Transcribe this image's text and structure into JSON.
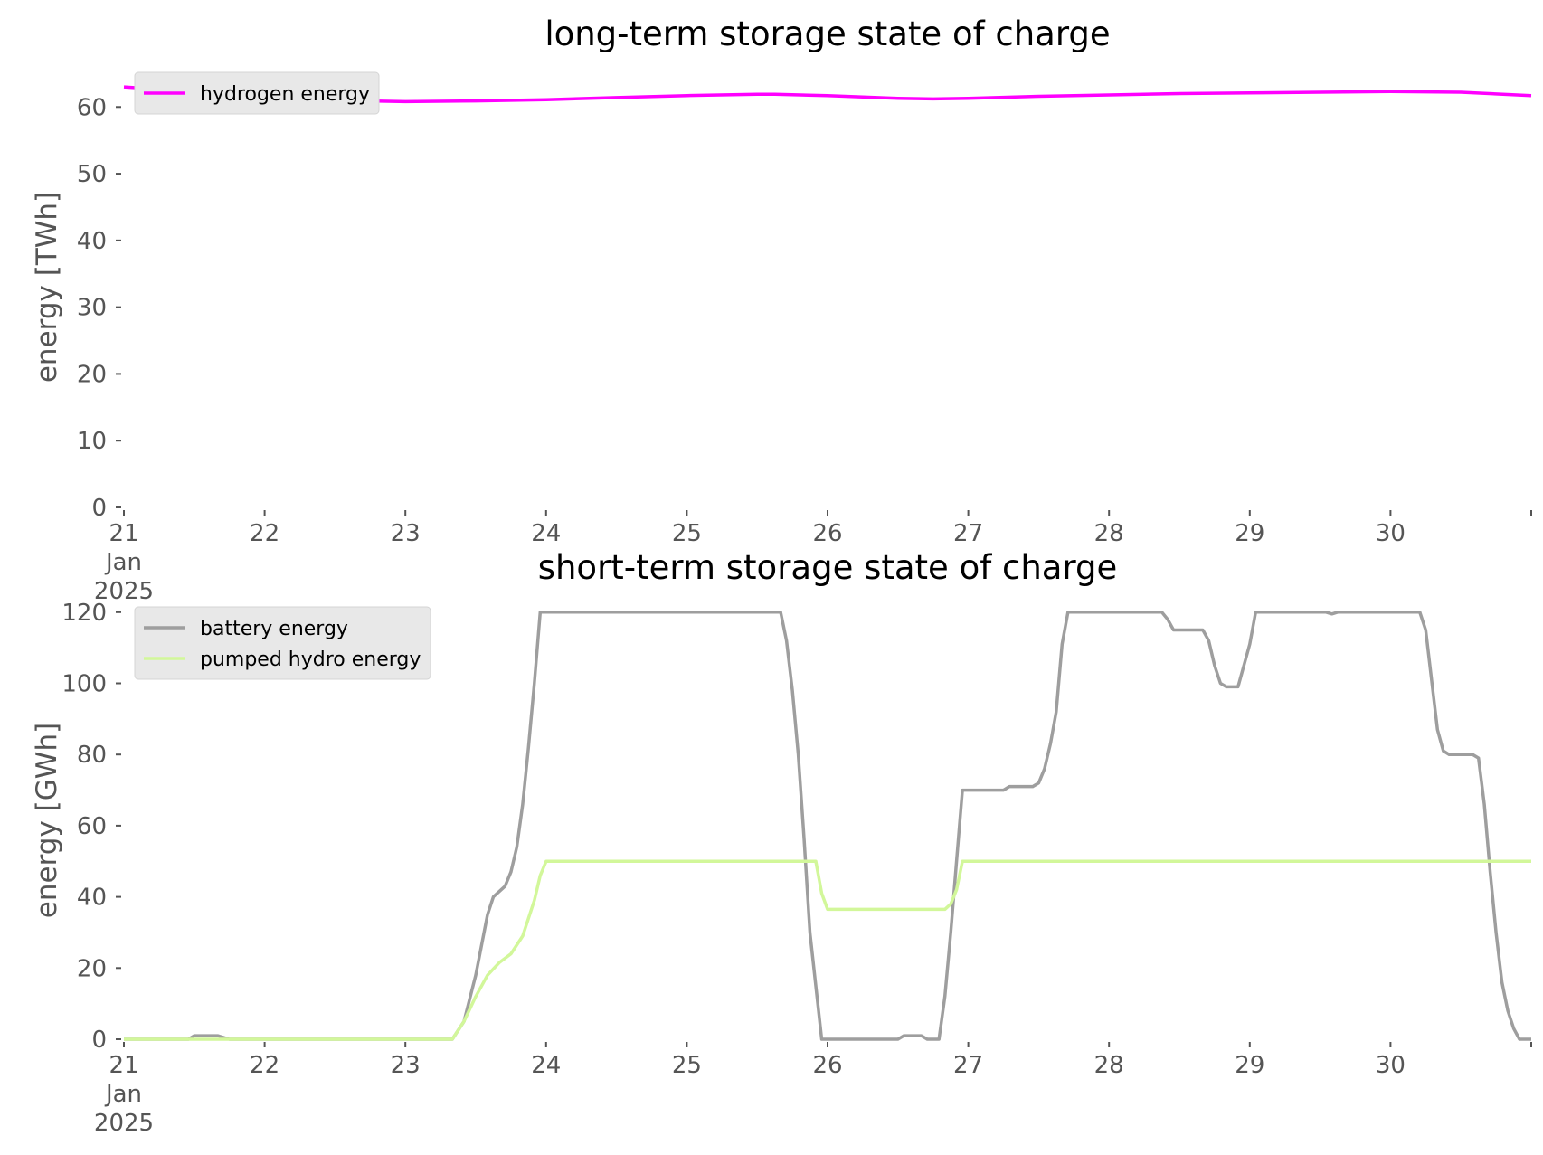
{
  "chart_data": [
    {
      "type": "line",
      "title": "long-term storage state of charge",
      "xlabel": "",
      "ylabel": "energy [TWh]",
      "ylim": [
        0,
        66
      ],
      "xlim": [
        "2025-01-21 00:00",
        "2025-01-31 00:00"
      ],
      "grid": false,
      "legend_position": "top-left",
      "yticks": [
        0,
        10,
        20,
        30,
        40,
        50,
        60
      ],
      "xtick_labels": [
        [
          "21",
          "Jan",
          "2025"
        ],
        [
          "22"
        ],
        [
          "23"
        ],
        [
          "24"
        ],
        [
          "25"
        ],
        [
          "26"
        ],
        [
          "27"
        ],
        [
          "28"
        ],
        [
          "29"
        ],
        [
          "30"
        ],
        [
          ""
        ]
      ],
      "series": [
        {
          "name": "hydrogen energy",
          "color": "#ff00ff",
          "points": [
            [
              "2025-01-21 00:00",
              63.0
            ],
            [
              "2025-01-21 12:00",
              62.3
            ],
            [
              "2025-01-22 00:00",
              61.7
            ],
            [
              "2025-01-22 12:00",
              61.0
            ],
            [
              "2025-01-23 00:00",
              60.8
            ],
            [
              "2025-01-23 12:00",
              60.9
            ],
            [
              "2025-01-24 00:00",
              61.1
            ],
            [
              "2025-01-24 12:00",
              61.4
            ],
            [
              "2025-01-25 00:00",
              61.7
            ],
            [
              "2025-01-25 12:00",
              61.9
            ],
            [
              "2025-01-25 15:00",
              61.9
            ],
            [
              "2025-01-26 00:00",
              61.7
            ],
            [
              "2025-01-26 12:00",
              61.3
            ],
            [
              "2025-01-26 18:00",
              61.2
            ],
            [
              "2025-01-27 00:00",
              61.3
            ],
            [
              "2025-01-27 12:00",
              61.6
            ],
            [
              "2025-01-28 00:00",
              61.8
            ],
            [
              "2025-01-28 12:00",
              62.0
            ],
            [
              "2025-01-29 00:00",
              62.1
            ],
            [
              "2025-01-29 12:00",
              62.2
            ],
            [
              "2025-01-30 00:00",
              62.3
            ],
            [
              "2025-01-30 12:00",
              62.2
            ],
            [
              "2025-01-31 00:00",
              61.7
            ]
          ]
        }
      ]
    },
    {
      "type": "line",
      "title": "short-term storage state of charge",
      "xlabel": "",
      "ylabel": "energy [GWh]",
      "ylim": [
        0,
        123
      ],
      "xlim": [
        "2025-01-21 00:00",
        "2025-01-31 00:00"
      ],
      "grid": false,
      "legend_position": "top-left",
      "yticks": [
        0,
        20,
        40,
        60,
        80,
        100,
        120
      ],
      "xtick_labels": [
        [
          "21",
          "Jan",
          "2025"
        ],
        [
          "22"
        ],
        [
          "23"
        ],
        [
          "24"
        ],
        [
          "25"
        ],
        [
          "26"
        ],
        [
          "27"
        ],
        [
          "28"
        ],
        [
          "29"
        ],
        [
          "30"
        ],
        [
          ""
        ]
      ],
      "series": [
        {
          "name": "battery energy",
          "color": "#9e9e9e",
          "points": [
            [
              "2025-01-21 00:00",
              0
            ],
            [
              "2025-01-21 11:00",
              0
            ],
            [
              "2025-01-21 12:00",
              1
            ],
            [
              "2025-01-21 16:00",
              1
            ],
            [
              "2025-01-21 18:00",
              0
            ],
            [
              "2025-01-23 08:00",
              0
            ],
            [
              "2025-01-23 10:00",
              5
            ],
            [
              "2025-01-23 12:00",
              18
            ],
            [
              "2025-01-23 14:00",
              35
            ],
            [
              "2025-01-23 15:00",
              40
            ],
            [
              "2025-01-23 17:00",
              43
            ],
            [
              "2025-01-23 18:00",
              47
            ],
            [
              "2025-01-23 19:00",
              54
            ],
            [
              "2025-01-23 20:00",
              66
            ],
            [
              "2025-01-23 21:00",
              82
            ],
            [
              "2025-01-23 22:00",
              100
            ],
            [
              "2025-01-23 23:00",
              120
            ],
            [
              "2025-01-25 16:00",
              120
            ],
            [
              "2025-01-25 17:00",
              112
            ],
            [
              "2025-01-25 18:00",
              98
            ],
            [
              "2025-01-25 19:00",
              80
            ],
            [
              "2025-01-25 20:00",
              56
            ],
            [
              "2025-01-25 21:00",
              30
            ],
            [
              "2025-01-25 23:00",
              0
            ],
            [
              "2025-01-26 12:00",
              0
            ],
            [
              "2025-01-26 13:00",
              1
            ],
            [
              "2025-01-26 16:00",
              1
            ],
            [
              "2025-01-26 17:00",
              0
            ],
            [
              "2025-01-26 19:00",
              0
            ],
            [
              "2025-01-26 20:00",
              12
            ],
            [
              "2025-01-26 21:00",
              30
            ],
            [
              "2025-01-26 22:00",
              50
            ],
            [
              "2025-01-26 23:00",
              70
            ],
            [
              "2025-01-27 06:00",
              70
            ],
            [
              "2025-01-27 07:00",
              71
            ],
            [
              "2025-01-27 11:00",
              71
            ],
            [
              "2025-01-27 12:00",
              72
            ],
            [
              "2025-01-27 13:00",
              76
            ],
            [
              "2025-01-27 14:00",
              83
            ],
            [
              "2025-01-27 15:00",
              92
            ],
            [
              "2025-01-27 16:00",
              111
            ],
            [
              "2025-01-27 17:00",
              120
            ],
            [
              "2025-01-28 09:00",
              120
            ],
            [
              "2025-01-28 10:00",
              118
            ],
            [
              "2025-01-28 11:00",
              115
            ],
            [
              "2025-01-28 16:00",
              115
            ],
            [
              "2025-01-28 17:00",
              112
            ],
            [
              "2025-01-28 18:00",
              105
            ],
            [
              "2025-01-28 19:00",
              100
            ],
            [
              "2025-01-28 20:00",
              99
            ],
            [
              "2025-01-28 22:00",
              99
            ],
            [
              "2025-01-28 23:00",
              105
            ],
            [
              "2025-01-29 00:00",
              111
            ],
            [
              "2025-01-29 01:00",
              120
            ],
            [
              "2025-01-29 13:00",
              120
            ],
            [
              "2025-01-29 14:00",
              119.5
            ],
            [
              "2025-01-29 15:00",
              120
            ],
            [
              "2025-01-30 05:00",
              120
            ],
            [
              "2025-01-30 06:00",
              115
            ],
            [
              "2025-01-30 07:00",
              101
            ],
            [
              "2025-01-30 08:00",
              87
            ],
            [
              "2025-01-30 09:00",
              81
            ],
            [
              "2025-01-30 10:00",
              80
            ],
            [
              "2025-01-30 14:00",
              80
            ],
            [
              "2025-01-30 15:00",
              79
            ],
            [
              "2025-01-30 16:00",
              66
            ],
            [
              "2025-01-30 17:00",
              47
            ],
            [
              "2025-01-30 18:00",
              30
            ],
            [
              "2025-01-30 19:00",
              16
            ],
            [
              "2025-01-30 20:00",
              8
            ],
            [
              "2025-01-30 21:00",
              3
            ],
            [
              "2025-01-30 22:00",
              0
            ],
            [
              "2025-01-31 00:00",
              0
            ]
          ]
        },
        {
          "name": "pumped hydro energy",
          "color": "#d2f79a",
          "points": [
            [
              "2025-01-21 00:00",
              0
            ],
            [
              "2025-01-23 08:00",
              0
            ],
            [
              "2025-01-23 10:00",
              5
            ],
            [
              "2025-01-23 12:00",
              12
            ],
            [
              "2025-01-23 14:00",
              18
            ],
            [
              "2025-01-23 16:00",
              21.5
            ],
            [
              "2025-01-23 18:00",
              24
            ],
            [
              "2025-01-23 20:00",
              29
            ],
            [
              "2025-01-23 22:00",
              39
            ],
            [
              "2025-01-23 23:00",
              46
            ],
            [
              "2025-01-24 00:00",
              50
            ],
            [
              "2025-01-25 22:00",
              50
            ],
            [
              "2025-01-25 23:00",
              41
            ],
            [
              "2025-01-26 00:00",
              36.5
            ],
            [
              "2025-01-26 20:00",
              36.5
            ],
            [
              "2025-01-26 21:00",
              38
            ],
            [
              "2025-01-26 22:00",
              42
            ],
            [
              "2025-01-26 23:00",
              50
            ],
            [
              "2025-01-31 00:00",
              50
            ]
          ]
        }
      ]
    }
  ]
}
